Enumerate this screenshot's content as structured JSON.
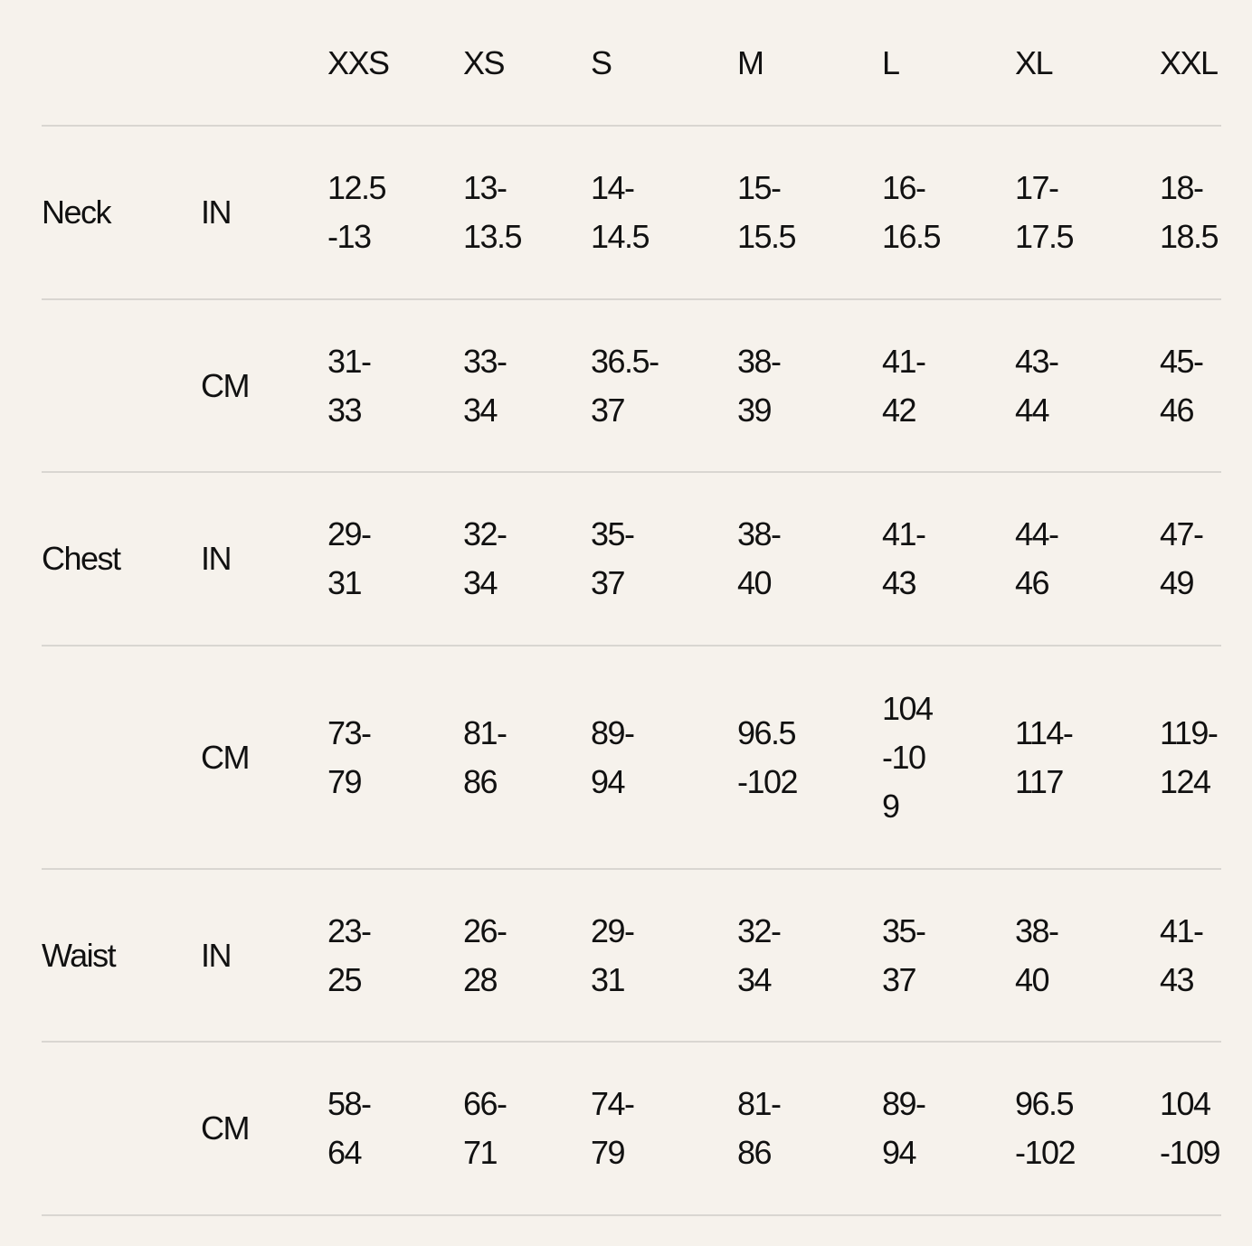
{
  "sizes": [
    "XXS",
    "XS",
    "S",
    "M",
    "L",
    "XL",
    "XXL"
  ],
  "rows": [
    {
      "measure": "Neck",
      "unit": "IN",
      "values": [
        "12.5\n-13",
        "13-\n13.5",
        "14-\n14.5",
        "15-\n15.5",
        "16-\n16.5",
        "17-\n17.5",
        "18-\n18.5"
      ]
    },
    {
      "measure": "",
      "unit": "CM",
      "values": [
        "31-\n33",
        "33-\n34",
        "36.5-\n37",
        "38-\n39",
        "41-\n42",
        "43-\n44",
        "45-\n46"
      ]
    },
    {
      "measure": "Chest",
      "unit": "IN",
      "values": [
        "29-\n31",
        "32-\n34",
        "35-\n37",
        "38-\n40",
        "41-\n43",
        "44-\n46",
        "47-\n49"
      ]
    },
    {
      "measure": "",
      "unit": "CM",
      "values": [
        "73-\n79",
        "81-\n86",
        "89-\n94",
        "96.5\n-102",
        "104\n-10\n9",
        "114-\n117",
        "119-\n124"
      ]
    },
    {
      "measure": "Waist",
      "unit": "IN",
      "values": [
        "23-\n25",
        "26-\n28",
        "29-\n31",
        "32-\n34",
        "35-\n37",
        "38-\n40",
        "41-\n43"
      ]
    },
    {
      "measure": "",
      "unit": "CM",
      "values": [
        "58-\n64",
        "66-\n71",
        "74-\n79",
        "81-\n86",
        "89-\n94",
        "96.5\n-102",
        "104\n-109"
      ]
    }
  ]
}
